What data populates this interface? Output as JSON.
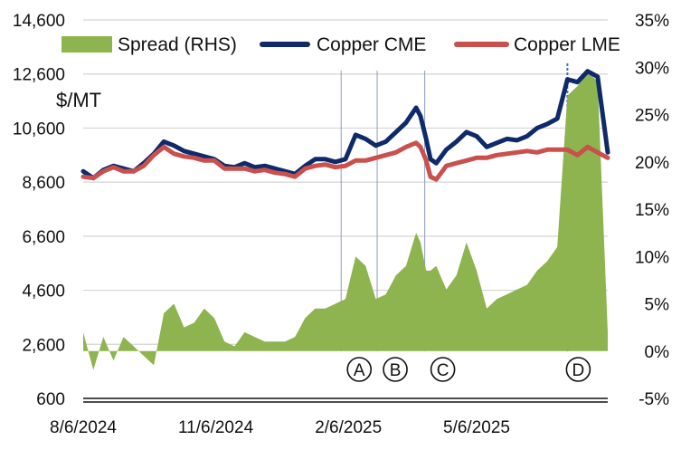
{
  "chart_data": {
    "type": "line",
    "title": "",
    "ylabel": "$/MT",
    "left_axis": {
      "min": 600,
      "max": 14600,
      "ticks": [
        "600",
        "2,600",
        "4,600",
        "6,600",
        "8,600",
        "10,600",
        "12,600",
        "14,600"
      ]
    },
    "right_axis": {
      "min": -5,
      "max": 35,
      "ticks": [
        "-5%",
        "0%",
        "5%",
        "10%",
        "15%",
        "20%",
        "25%",
        "30%",
        "35%"
      ]
    },
    "x_range": [
      "2024-08-06",
      "2025-08-05"
    ],
    "x_ticks": [
      "8/6/2024",
      "11/6/2024",
      "2/6/2025",
      "5/6/2025"
    ],
    "x_tick_dates": [
      "2024-08-06",
      "2024-11-06",
      "2025-02-06",
      "2025-05-06"
    ],
    "legend": [
      {
        "name": "Spread (RHS)",
        "color": "#8db44f"
      },
      {
        "name": "Copper CME",
        "color": "#0f2a6b"
      },
      {
        "name": "Copper LME",
        "color": "#c9504c"
      }
    ],
    "events": [
      {
        "label": "A",
        "date": "2025-02-01"
      },
      {
        "label": "B",
        "date": "2025-02-26"
      },
      {
        "label": "C",
        "date": "2025-03-31"
      },
      {
        "label": "D",
        "date": "2025-07-08"
      }
    ],
    "series": [
      {
        "name": "Copper CME",
        "axis": "left",
        "color": "#0f2a6b",
        "dates": [
          "2024-08-06",
          "2024-08-13",
          "2024-08-20",
          "2024-08-27",
          "2024-09-03",
          "2024-09-10",
          "2024-09-17",
          "2024-09-24",
          "2024-10-01",
          "2024-10-08",
          "2024-10-15",
          "2024-10-22",
          "2024-10-29",
          "2024-11-05",
          "2024-11-12",
          "2024-11-19",
          "2024-11-26",
          "2024-12-03",
          "2024-12-10",
          "2024-12-17",
          "2024-12-24",
          "2024-12-31",
          "2025-01-07",
          "2025-01-14",
          "2025-01-21",
          "2025-01-28",
          "2025-02-04",
          "2025-02-11",
          "2025-02-18",
          "2025-02-25",
          "2025-03-04",
          "2025-03-11",
          "2025-03-18",
          "2025-03-25",
          "2025-03-28",
          "2025-04-01",
          "2025-04-04",
          "2025-04-08",
          "2025-04-15",
          "2025-04-22",
          "2025-04-29",
          "2025-05-06",
          "2025-05-13",
          "2025-05-20",
          "2025-05-27",
          "2025-06-03",
          "2025-06-10",
          "2025-06-17",
          "2025-06-24",
          "2025-07-01",
          "2025-07-08",
          "2025-07-15",
          "2025-07-22",
          "2025-07-29",
          "2025-08-05"
        ],
        "values": [
          9000,
          8750,
          9050,
          9200,
          9100,
          9000,
          9300,
          9650,
          10100,
          9950,
          9750,
          9650,
          9550,
          9450,
          9200,
          9150,
          9300,
          9150,
          9200,
          9100,
          9000,
          8900,
          9200,
          9450,
          9450,
          9350,
          9450,
          10350,
          10200,
          9950,
          10100,
          10450,
          10800,
          11350,
          11050,
          10200,
          9450,
          9300,
          9800,
          10100,
          10450,
          10300,
          9900,
          10050,
          10200,
          10150,
          10300,
          10600,
          10750,
          10950,
          12400,
          12300,
          12700,
          12500,
          9700
        ]
      },
      {
        "name": "Copper LME",
        "axis": "left",
        "color": "#c9504c",
        "dates": [
          "2024-08-06",
          "2024-08-13",
          "2024-08-20",
          "2024-08-27",
          "2024-09-03",
          "2024-09-10",
          "2024-09-17",
          "2024-09-24",
          "2024-10-01",
          "2024-10-08",
          "2024-10-15",
          "2024-10-22",
          "2024-10-29",
          "2024-11-05",
          "2024-11-12",
          "2024-11-19",
          "2024-11-26",
          "2024-12-03",
          "2024-12-10",
          "2024-12-17",
          "2024-12-24",
          "2024-12-31",
          "2025-01-07",
          "2025-01-14",
          "2025-01-21",
          "2025-01-28",
          "2025-02-04",
          "2025-02-11",
          "2025-02-18",
          "2025-02-25",
          "2025-03-04",
          "2025-03-11",
          "2025-03-18",
          "2025-03-25",
          "2025-03-28",
          "2025-04-01",
          "2025-04-04",
          "2025-04-08",
          "2025-04-15",
          "2025-04-22",
          "2025-04-29",
          "2025-05-06",
          "2025-05-13",
          "2025-05-20",
          "2025-05-27",
          "2025-06-03",
          "2025-06-10",
          "2025-06-17",
          "2025-06-24",
          "2025-07-01",
          "2025-07-08",
          "2025-07-15",
          "2025-07-22",
          "2025-07-29",
          "2025-08-05"
        ],
        "values": [
          8800,
          8750,
          9000,
          9150,
          9000,
          9000,
          9200,
          9600,
          9900,
          9650,
          9550,
          9500,
          9400,
          9400,
          9100,
          9100,
          9100,
          9000,
          9050,
          8950,
          8900,
          8800,
          9100,
          9200,
          9250,
          9150,
          9200,
          9400,
          9400,
          9500,
          9600,
          9700,
          9900,
          10050,
          9900,
          9400,
          8800,
          8700,
          9200,
          9300,
          9400,
          9500,
          9500,
          9600,
          9650,
          9700,
          9750,
          9700,
          9800,
          9800,
          9800,
          9600,
          9900,
          9700,
          9500
        ]
      },
      {
        "name": "Spread (RHS)",
        "axis": "right",
        "type": "area",
        "color": "#8db44f",
        "dates": [
          "2024-08-06",
          "2024-08-13",
          "2024-08-20",
          "2024-08-27",
          "2024-09-03",
          "2024-09-10",
          "2024-09-17",
          "2024-09-24",
          "2024-10-01",
          "2024-10-08",
          "2024-10-15",
          "2024-10-22",
          "2024-10-29",
          "2024-11-05",
          "2024-11-12",
          "2024-11-19",
          "2024-11-26",
          "2024-12-03",
          "2024-12-10",
          "2024-12-17",
          "2024-12-24",
          "2024-12-31",
          "2025-01-07",
          "2025-01-14",
          "2025-01-21",
          "2025-01-28",
          "2025-02-04",
          "2025-02-11",
          "2025-02-18",
          "2025-02-25",
          "2025-03-04",
          "2025-03-11",
          "2025-03-18",
          "2025-03-25",
          "2025-03-28",
          "2025-04-01",
          "2025-04-04",
          "2025-04-08",
          "2025-04-15",
          "2025-04-22",
          "2025-04-29",
          "2025-05-06",
          "2025-05-13",
          "2025-05-20",
          "2025-05-27",
          "2025-06-03",
          "2025-06-10",
          "2025-06-17",
          "2025-06-24",
          "2025-07-01",
          "2025-07-08",
          "2025-07-15",
          "2025-07-22",
          "2025-07-29",
          "2025-08-05"
        ],
        "values": [
          2.0,
          -2.0,
          1.5,
          -1.0,
          1.5,
          0.5,
          -0.5,
          -1.5,
          4.0,
          5.0,
          2.5,
          3.0,
          4.5,
          3.5,
          1.0,
          0.5,
          2.0,
          1.5,
          1.0,
          1.0,
          1.0,
          1.5,
          3.5,
          4.5,
          4.5,
          5.0,
          5.5,
          10.0,
          9.0,
          5.5,
          6.0,
          8.0,
          9.0,
          12.5,
          11.5,
          8.5,
          8.5,
          9.0,
          6.5,
          8.0,
          11.5,
          8.5,
          4.5,
          5.5,
          6.0,
          6.5,
          7.0,
          8.5,
          9.5,
          11.0,
          27.0,
          28.0,
          29.5,
          28.5,
          2.0
        ]
      }
    ]
  }
}
